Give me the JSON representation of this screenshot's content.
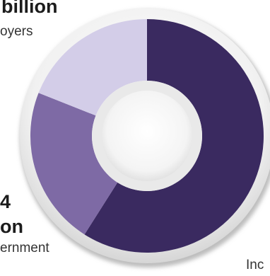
{
  "chart_data": {
    "type": "pie",
    "donut": true,
    "legend": "none",
    "slices": [
      {
        "value_percent": 59,
        "color": "#3a2a60"
      },
      {
        "value_percent": 22,
        "color": "#7e6aa5"
      },
      {
        "value_percent": 19,
        "color": "#d3cde8"
      }
    ],
    "labels": [
      {
        "value_text": "billion",
        "caption": "oyers"
      },
      {
        "value_text": "on",
        "prefix": "4",
        "caption": "ernment"
      },
      {
        "caption": "Inc"
      }
    ]
  }
}
